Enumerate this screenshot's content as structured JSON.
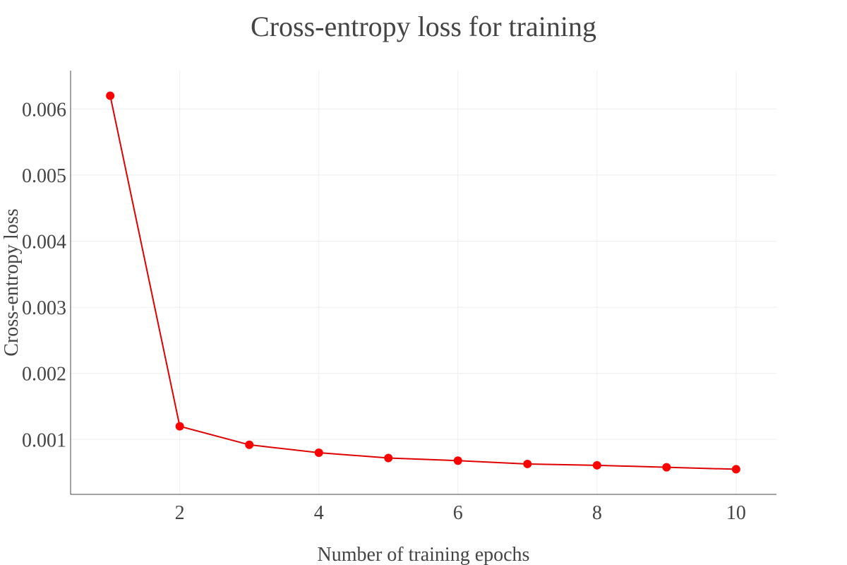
{
  "chart_data": {
    "type": "line",
    "title": "Cross-entropy loss for training",
    "xlabel": "Number of training epochs",
    "ylabel": "Cross-entropy loss",
    "x": [
      1,
      2,
      3,
      4,
      5,
      6,
      7,
      8,
      9,
      10
    ],
    "series": [
      {
        "values": [
          0.0062,
          0.0012,
          0.00092,
          0.0008,
          0.00072,
          0.00068,
          0.00063,
          0.00061,
          0.00058,
          0.00055
        ]
      }
    ],
    "xlim": [
      0.43,
      10.58
    ],
    "ylim": [
      0.00017,
      0.00658
    ],
    "xticks": [
      2,
      4,
      6,
      8,
      10
    ],
    "xtick_labels": [
      "2",
      "4",
      "6",
      "8",
      "10"
    ],
    "yticks": [
      0.001,
      0.002,
      0.003,
      0.004,
      0.005,
      0.006
    ],
    "ytick_labels": [
      "0.001",
      "0.002",
      "0.003",
      "0.004",
      "0.005",
      "0.006"
    ],
    "grid": true,
    "legend": "none",
    "colors": {
      "line": "#e00000",
      "marker": "#ff0000",
      "grid": "#eeeeee",
      "axis": "#444444",
      "text": "#444444"
    }
  }
}
